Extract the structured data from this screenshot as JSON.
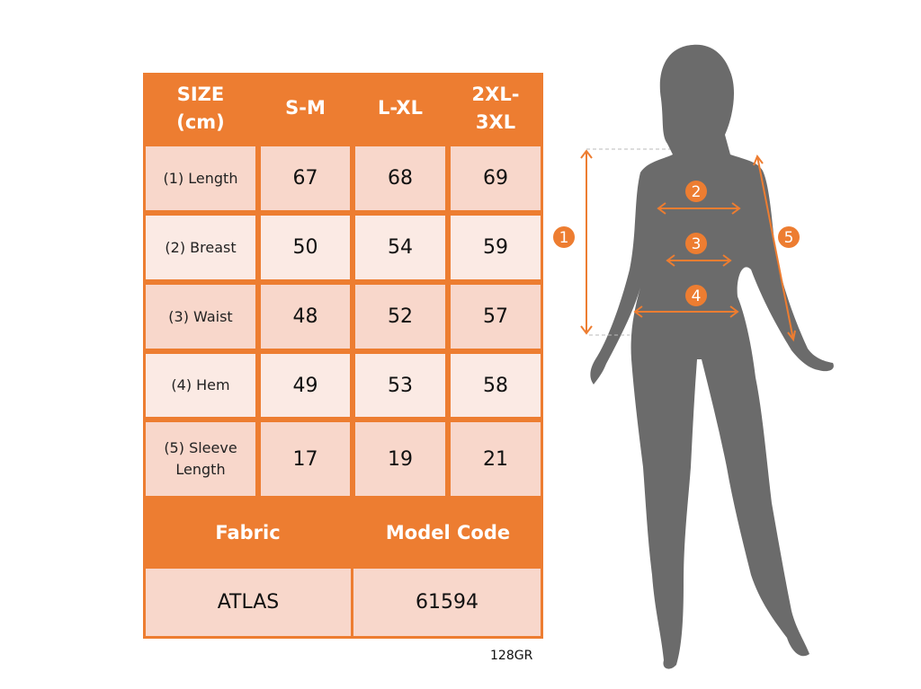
{
  "table": {
    "header": [
      "SIZE\n(cm)",
      "S-M",
      "L-XL",
      "2XL-\n3XL"
    ],
    "rows": [
      {
        "label": "(1) Length",
        "values": [
          "67",
          "68",
          "69"
        ]
      },
      {
        "label": "(2) Breast",
        "values": [
          "50",
          "54",
          "59"
        ]
      },
      {
        "label": "(3) Waist",
        "values": [
          "48",
          "52",
          "57"
        ]
      },
      {
        "label": "(4) Hem",
        "values": [
          "49",
          "53",
          "58"
        ]
      },
      {
        "label": "(5) Sleeve\nLength",
        "values": [
          "17",
          "19",
          "21"
        ]
      }
    ],
    "fabric_label": "Fabric",
    "model_code_label": "Model Code",
    "fabric_value": "ATLAS",
    "model_code_value": "61594"
  },
  "footer_code": "128GR",
  "figure": {
    "markers": [
      "1",
      "2",
      "3",
      "4",
      "5"
    ],
    "accent_color": "#ED7D31",
    "silhouette_color": "#6B6B6B"
  }
}
